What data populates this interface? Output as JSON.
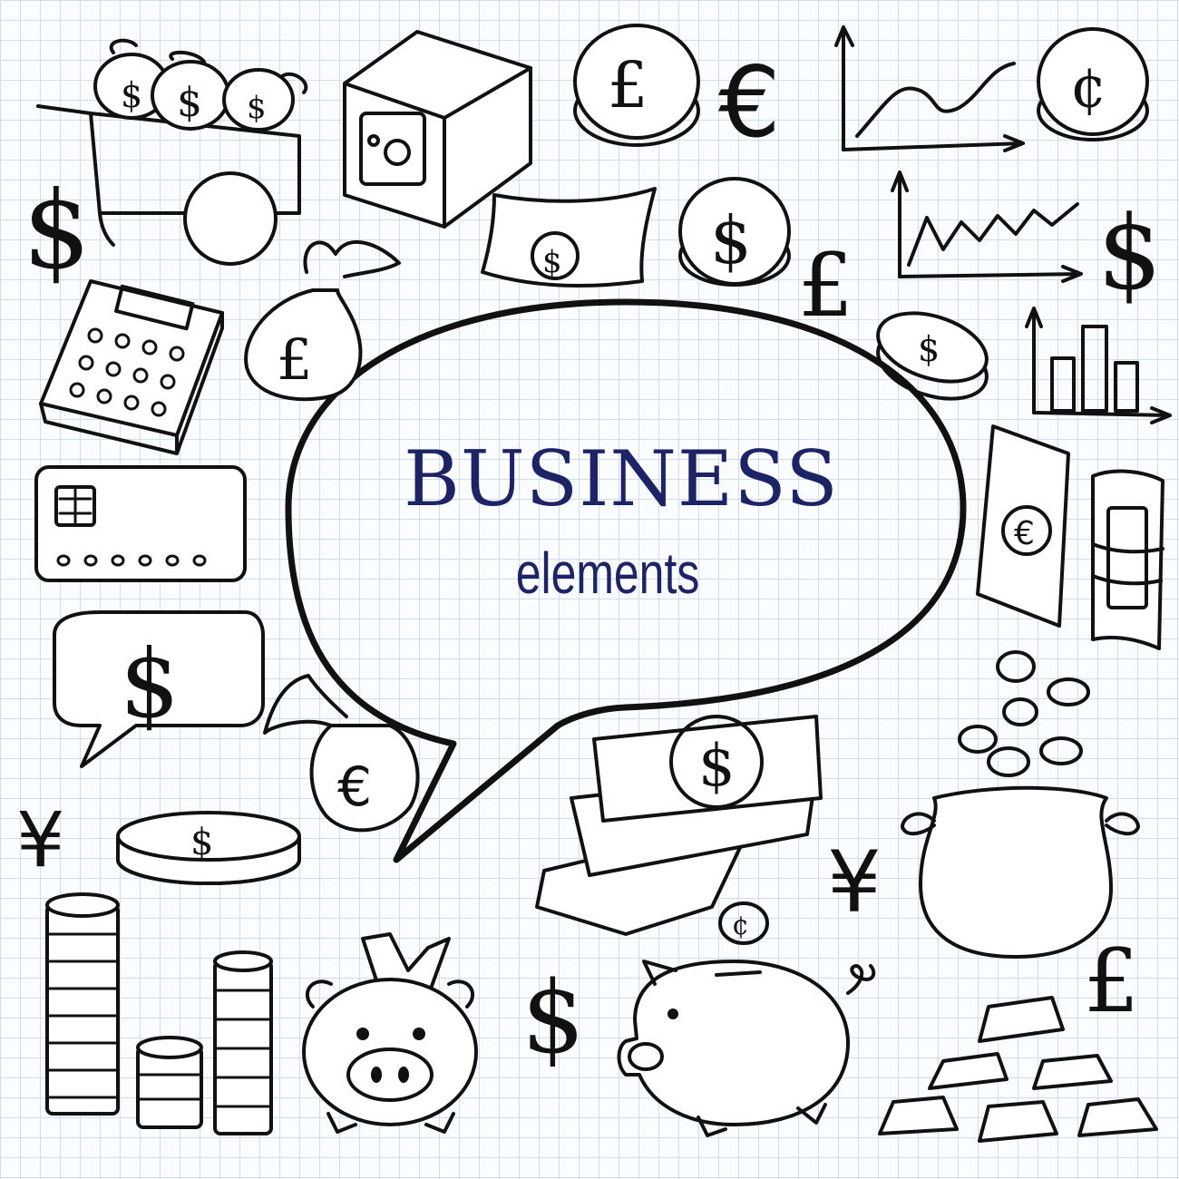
{
  "headline": "BUSINESS",
  "subline": "elements",
  "colors": {
    "ink": "#111111",
    "title": "#1d2466",
    "paper": "#fbfcff",
    "grid": "#d5dbec"
  },
  "symbols": {
    "dollar": "$",
    "pound": "£",
    "euro": "€",
    "cent": "¢",
    "yen": "¥"
  },
  "icons": [
    "money-cart-icon",
    "safe-icon",
    "pound-coin-icon",
    "euro-sign-icon",
    "growth-chart-icon",
    "cent-coin-icon",
    "dollar-sign-icon",
    "banknote-icon",
    "dollar-coin-icon",
    "line-chart-icon",
    "calculator-icon",
    "pound-bag-icon",
    "flat-dollar-coin-icon",
    "bar-chart-icon",
    "credit-card-icon",
    "euro-banknote-icon",
    "money-roll-icon",
    "dollar-speech-bubble-icon",
    "euro-bag-icon",
    "banknote-stack-icon",
    "coin-pouch-icon",
    "yen-sign-icon",
    "coin-stack-icon",
    "piggy-bank-front-icon",
    "piggy-bank-side-icon",
    "gold-bars-icon"
  ]
}
